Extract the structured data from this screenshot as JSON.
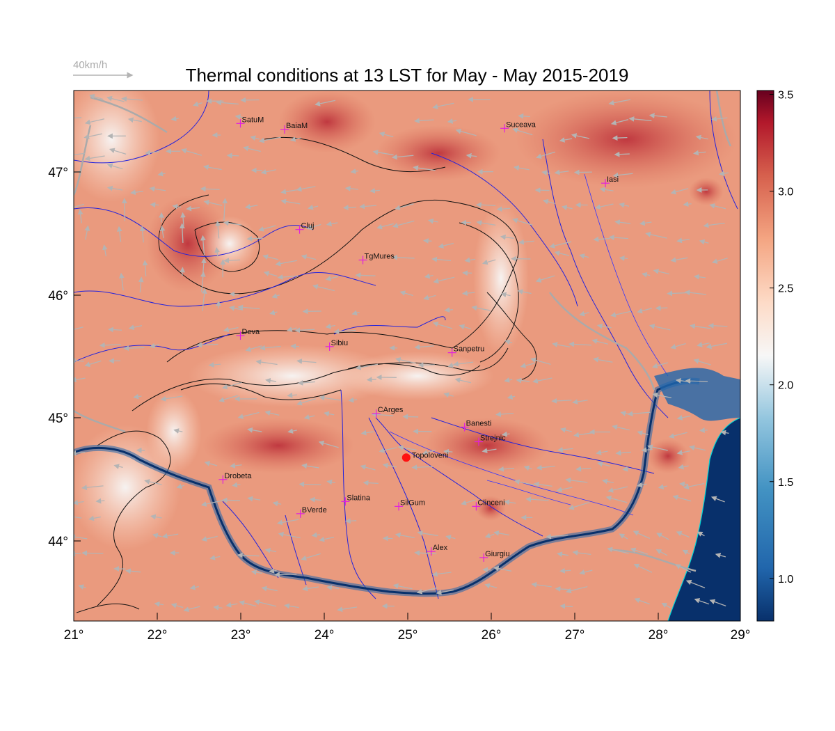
{
  "title": "Thermal conditions at 13 LST for May - May  2015-2019",
  "wind_legend": {
    "label": "40km/h"
  },
  "axes": {
    "lon_ticks": [
      "21°",
      "22°",
      "23°",
      "24°",
      "25°",
      "26°",
      "27°",
      "28°",
      "29°"
    ],
    "lat_ticks": [
      "47°",
      "46°",
      "45°",
      "44°"
    ],
    "lon_range": [
      21,
      29
    ],
    "lat_range": [
      43.35,
      47.7
    ]
  },
  "colorbar": {
    "range": [
      0.78,
      3.52
    ],
    "ticks": [
      "3.5",
      "3.0",
      "2.5",
      "2.0",
      "1.5",
      "1.0"
    ],
    "colors": [
      "#08306b",
      "#2166ac",
      "#4393c3",
      "#92c5de",
      "#f7f7f7",
      "#fddbc7",
      "#f4a582",
      "#d6604d",
      "#b2182b",
      "#67001f"
    ]
  },
  "cities": [
    {
      "name": "SatuM",
      "lon": 23.0,
      "lat": 47.43
    },
    {
      "name": "BaiaM",
      "lon": 23.53,
      "lat": 47.38
    },
    {
      "name": "Suceava",
      "lon": 26.17,
      "lat": 47.39
    },
    {
      "name": "Iasi",
      "lon": 27.38,
      "lat": 46.94
    },
    {
      "name": "Cluj",
      "lon": 23.71,
      "lat": 46.56
    },
    {
      "name": "TgMures",
      "lon": 24.47,
      "lat": 46.31
    },
    {
      "name": "Deva",
      "lon": 23.0,
      "lat": 45.69
    },
    {
      "name": "Sibiu",
      "lon": 24.07,
      "lat": 45.6
    },
    {
      "name": "Sanpetru",
      "lon": 25.54,
      "lat": 45.55
    },
    {
      "name": "CArges",
      "lon": 24.63,
      "lat": 45.05
    },
    {
      "name": "Banesti",
      "lon": 25.69,
      "lat": 44.94
    },
    {
      "name": "Strejnic",
      "lon": 25.86,
      "lat": 44.82
    },
    {
      "name": "Drobeta",
      "lon": 22.79,
      "lat": 44.51
    },
    {
      "name": "Slatina",
      "lon": 24.26,
      "lat": 44.33
    },
    {
      "name": "SilGum",
      "lon": 24.9,
      "lat": 44.29
    },
    {
      "name": "Clinceni",
      "lon": 25.83,
      "lat": 44.29
    },
    {
      "name": "BVerde",
      "lon": 23.72,
      "lat": 44.23
    },
    {
      "name": "Alex",
      "lon": 25.29,
      "lat": 43.92
    },
    {
      "name": "Giurgiu",
      "lon": 25.92,
      "lat": 43.87
    }
  ],
  "highlight_site": {
    "name": "Topoloveni",
    "lon": 24.99,
    "lat": 44.69
  }
}
